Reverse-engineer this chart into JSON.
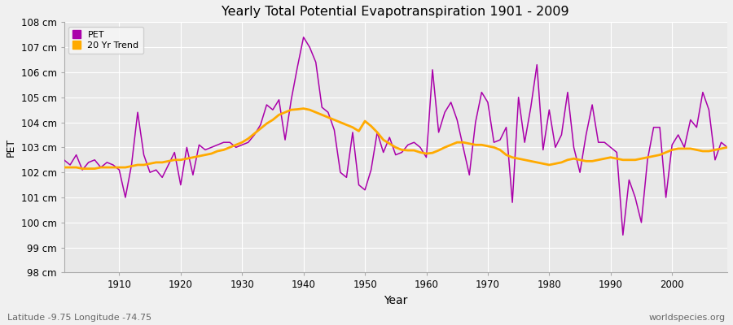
{
  "title": "Yearly Total Potential Evapotranspiration 1901 - 2009",
  "xlabel": "Year",
  "ylabel": "PET",
  "subtitle_left": "Latitude -9.75 Longitude -74.75",
  "subtitle_right": "worldspecies.org",
  "ylim": [
    98,
    108
  ],
  "background_color": "#f0f0f0",
  "plot_bg_color": "#e8e8e8",
  "grid_color": "#ffffff",
  "pet_color": "#aa00aa",
  "trend_color": "#ffaa00",
  "years": [
    1901,
    1902,
    1903,
    1904,
    1905,
    1906,
    1907,
    1908,
    1909,
    1910,
    1911,
    1912,
    1913,
    1914,
    1915,
    1916,
    1917,
    1918,
    1919,
    1920,
    1921,
    1922,
    1923,
    1924,
    1925,
    1926,
    1927,
    1928,
    1929,
    1930,
    1931,
    1932,
    1933,
    1934,
    1935,
    1936,
    1937,
    1938,
    1939,
    1940,
    1941,
    1942,
    1943,
    1944,
    1945,
    1946,
    1947,
    1948,
    1949,
    1950,
    1951,
    1952,
    1953,
    1954,
    1955,
    1956,
    1957,
    1958,
    1959,
    1960,
    1961,
    1962,
    1963,
    1964,
    1965,
    1966,
    1967,
    1968,
    1969,
    1970,
    1971,
    1972,
    1973,
    1974,
    1975,
    1976,
    1977,
    1978,
    1979,
    1980,
    1981,
    1982,
    1983,
    1984,
    1985,
    1986,
    1987,
    1988,
    1989,
    1990,
    1991,
    1992,
    1993,
    1994,
    1995,
    1996,
    1997,
    1998,
    1999,
    2000,
    2001,
    2002,
    2003,
    2004,
    2005,
    2006,
    2007,
    2008,
    2009
  ],
  "pet_values": [
    102.5,
    102.3,
    102.7,
    102.1,
    102.4,
    102.5,
    102.2,
    102.4,
    102.3,
    102.1,
    101.0,
    102.3,
    104.4,
    102.7,
    102.0,
    102.1,
    101.8,
    102.3,
    102.8,
    101.5,
    103.0,
    101.9,
    103.1,
    102.9,
    103.0,
    103.1,
    103.2,
    103.2,
    103.0,
    103.1,
    103.2,
    103.5,
    103.9,
    104.7,
    104.5,
    104.9,
    103.3,
    104.9,
    106.2,
    107.4,
    107.0,
    106.4,
    104.6,
    104.4,
    103.7,
    102.0,
    101.8,
    103.6,
    101.5,
    101.3,
    102.1,
    103.6,
    102.8,
    103.4,
    102.7,
    102.8,
    103.1,
    103.2,
    103.0,
    102.6,
    106.1,
    103.6,
    104.4,
    104.8,
    104.1,
    103.0,
    101.9,
    104.0,
    105.2,
    104.8,
    103.2,
    103.3,
    103.8,
    100.8,
    105.0,
    103.2,
    104.6,
    106.3,
    102.9,
    104.5,
    103.0,
    103.5,
    105.2,
    103.0,
    102.0,
    103.5,
    104.7,
    103.2,
    103.2,
    103.0,
    102.8,
    99.5,
    101.7,
    101.0,
    100.0,
    102.5,
    103.8,
    103.8,
    101.0,
    103.1,
    103.5,
    103.0,
    104.1,
    103.8,
    105.2,
    104.5,
    102.5,
    103.2,
    103.0
  ],
  "trend_values": [
    102.2,
    102.2,
    102.2,
    102.15,
    102.15,
    102.15,
    102.2,
    102.2,
    102.2,
    102.2,
    102.2,
    102.25,
    102.3,
    102.3,
    102.35,
    102.4,
    102.4,
    102.45,
    102.5,
    102.5,
    102.55,
    102.6,
    102.65,
    102.7,
    102.75,
    102.85,
    102.9,
    103.0,
    103.1,
    103.2,
    103.35,
    103.55,
    103.75,
    103.95,
    104.1,
    104.3,
    104.4,
    104.5,
    104.52,
    104.55,
    104.5,
    104.4,
    104.3,
    104.2,
    104.1,
    104.0,
    103.9,
    103.8,
    103.65,
    104.05,
    103.85,
    103.6,
    103.3,
    103.15,
    103.0,
    102.9,
    102.88,
    102.88,
    102.8,
    102.75,
    102.78,
    102.88,
    103.0,
    103.1,
    103.2,
    103.2,
    103.15,
    103.1,
    103.1,
    103.05,
    103.0,
    102.9,
    102.7,
    102.6,
    102.55,
    102.5,
    102.45,
    102.4,
    102.35,
    102.3,
    102.35,
    102.4,
    102.5,
    102.55,
    102.5,
    102.45,
    102.45,
    102.5,
    102.55,
    102.6,
    102.55,
    102.5,
    102.5,
    102.5,
    102.55,
    102.6,
    102.65,
    102.7,
    102.8,
    102.9,
    102.95,
    102.95,
    102.95,
    102.9,
    102.85,
    102.85,
    102.9,
    102.95,
    103.0
  ]
}
